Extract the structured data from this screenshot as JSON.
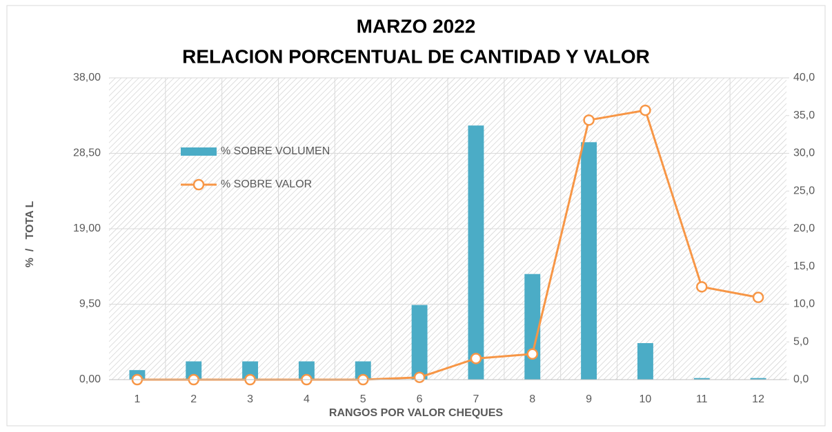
{
  "chart_data": {
    "type": "bar_line",
    "title": "MARZO 2022",
    "subtitle": "RELACION PORCENTUAL DE CANTIDAD Y VALOR",
    "x_label": "RANGOS POR VALOR CHEQUES",
    "y_label": "%  /   TOTA L",
    "categories": [
      "1",
      "2",
      "3",
      "4",
      "5",
      "6",
      "7",
      "8",
      "9",
      "10",
      "11",
      "12"
    ],
    "series": [
      {
        "name": "% SOBRE VOLUMEN",
        "type": "bar",
        "color": "#4bacc6",
        "axis": "y",
        "values": [
          1.2,
          2.3,
          2.3,
          2.3,
          2.3,
          9.4,
          32.0,
          13.3,
          29.9,
          4.6,
          0.2,
          0.2
        ]
      },
      {
        "name": "% SOBRE VALOR",
        "type": "line",
        "color": "#f79646",
        "axis": "y2",
        "values": [
          0,
          0,
          0,
          0,
          0,
          0.3,
          2.8,
          3.4,
          34.4,
          35.7,
          12.3,
          10.9
        ]
      }
    ],
    "ylim": [
      0,
      38
    ],
    "yticks": [
      {
        "value": 0,
        "label": "0,00"
      },
      {
        "value": 9.5,
        "label": "9,50"
      },
      {
        "value": 19,
        "label": "19,00"
      },
      {
        "value": 28.5,
        "label": "28,50"
      },
      {
        "value": 38,
        "label": "38,00"
      }
    ],
    "y2lim": [
      0,
      40
    ],
    "y2ticks": [
      {
        "value": 0,
        "label": "0,0"
      },
      {
        "value": 5,
        "label": "5,0"
      },
      {
        "value": 10,
        "label": "10,0"
      },
      {
        "value": 15,
        "label": "15,0"
      },
      {
        "value": 20,
        "label": "20,0"
      },
      {
        "value": 25,
        "label": "25,0"
      },
      {
        "value": 30,
        "label": "30,0"
      },
      {
        "value": 35,
        "label": "35,0"
      },
      {
        "value": 40,
        "label": "40,0"
      }
    ],
    "grid": true
  }
}
